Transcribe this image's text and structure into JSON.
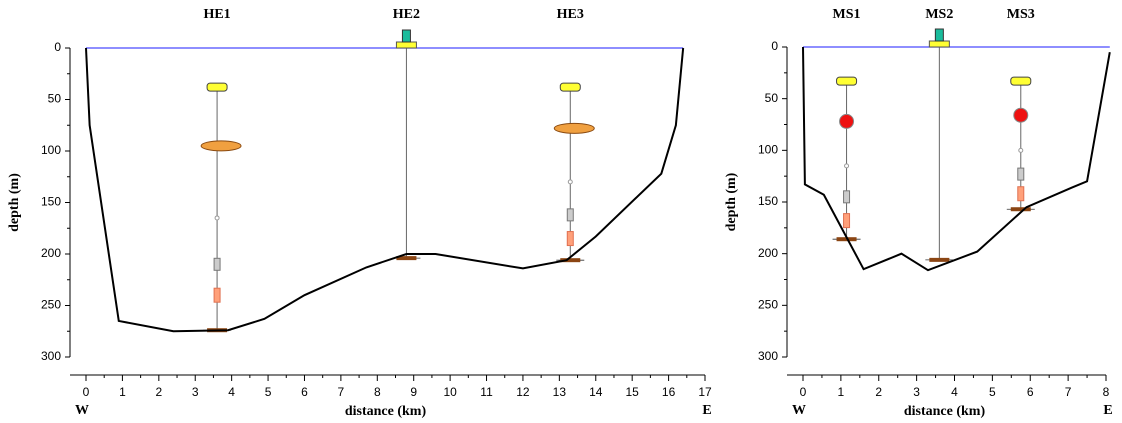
{
  "chart_data": [
    {
      "type": "line",
      "xlabel": "distance (km)",
      "ylabel": "depth (m)",
      "west": "W",
      "east": "E",
      "xlim": [
        0,
        17
      ],
      "xticks": [
        0,
        1,
        2,
        3,
        4,
        5,
        6,
        7,
        8,
        9,
        10,
        11,
        12,
        13,
        14,
        15,
        16,
        17
      ],
      "ylim": [
        0,
        300
      ],
      "yticks": [
        0,
        50,
        100,
        150,
        200,
        250,
        300
      ],
      "y_inverted": true,
      "x": [
        0,
        0.1,
        0.9,
        2.4,
        3.9,
        4.9,
        6,
        7.7,
        8.8,
        9.6,
        12,
        13.2,
        14,
        15.8,
        16.2,
        16.4
      ],
      "values": [
        0,
        75,
        265,
        275,
        274,
        263,
        240,
        213,
        200,
        200,
        214,
        206,
        183,
        122,
        75,
        0
      ],
      "surface_color": "#4a4aff",
      "bottom_color": "#000000",
      "moorings": [
        {
          "label": "HE1",
          "x": 3.6,
          "top": 38,
          "bottom": 274,
          "instruments": [
            {
              "depth": 95,
              "kind": "adcp"
            },
            {
              "depth": 165,
              "kind": "sensor"
            },
            {
              "depth": 210,
              "kind": "meter"
            },
            {
              "depth": 240,
              "kind": "logger"
            }
          ]
        },
        {
          "label": "HE2",
          "x": 8.8,
          "top": 0,
          "bottom": 204,
          "instruments": []
        },
        {
          "label": "HE3",
          "x": 13.3,
          "top": 38,
          "bottom": 206,
          "instruments": [
            {
              "depth": 78,
              "kind": "adcp"
            },
            {
              "depth": 130,
              "kind": "sensor"
            },
            {
              "depth": 162,
              "kind": "meter"
            },
            {
              "depth": 185,
              "kind": "logger"
            }
          ]
        }
      ]
    },
    {
      "type": "line",
      "xlabel": "distance (km)",
      "ylabel": "depth (m)",
      "west": "W",
      "east": "E",
      "xlim": [
        0,
        8
      ],
      "xticks": [
        0,
        1,
        2,
        3,
        4,
        5,
        6,
        7,
        8
      ],
      "ylim": [
        0,
        300
      ],
      "yticks": [
        0,
        50,
        100,
        150,
        200,
        250,
        300
      ],
      "y_inverted": true,
      "x": [
        0,
        0.05,
        0.55,
        1.6,
        2.6,
        3.3,
        4.6,
        5.9,
        7.1,
        7.5,
        8.1
      ],
      "values": [
        0,
        133,
        143,
        215,
        200,
        216,
        198,
        155,
        136,
        130,
        5
      ],
      "surface_color": "#4a4aff",
      "bottom_color": "#000000",
      "moorings": [
        {
          "label": "MS1",
          "x": 1.15,
          "top": 33,
          "bottom": 186,
          "instruments": [
            {
              "depth": 72,
              "kind": "buoy"
            },
            {
              "depth": 115,
              "kind": "sensor"
            },
            {
              "depth": 145,
              "kind": "meter"
            },
            {
              "depth": 168,
              "kind": "logger"
            }
          ]
        },
        {
          "label": "MS2",
          "x": 3.6,
          "top": 0,
          "bottom": 206,
          "instruments": []
        },
        {
          "label": "MS3",
          "x": 5.75,
          "top": 33,
          "bottom": 157,
          "instruments": [
            {
              "depth": 66,
              "kind": "buoy"
            },
            {
              "depth": 100,
              "kind": "sensor"
            },
            {
              "depth": 123,
              "kind": "meter"
            },
            {
              "depth": 142,
              "kind": "logger"
            }
          ]
        }
      ]
    }
  ]
}
